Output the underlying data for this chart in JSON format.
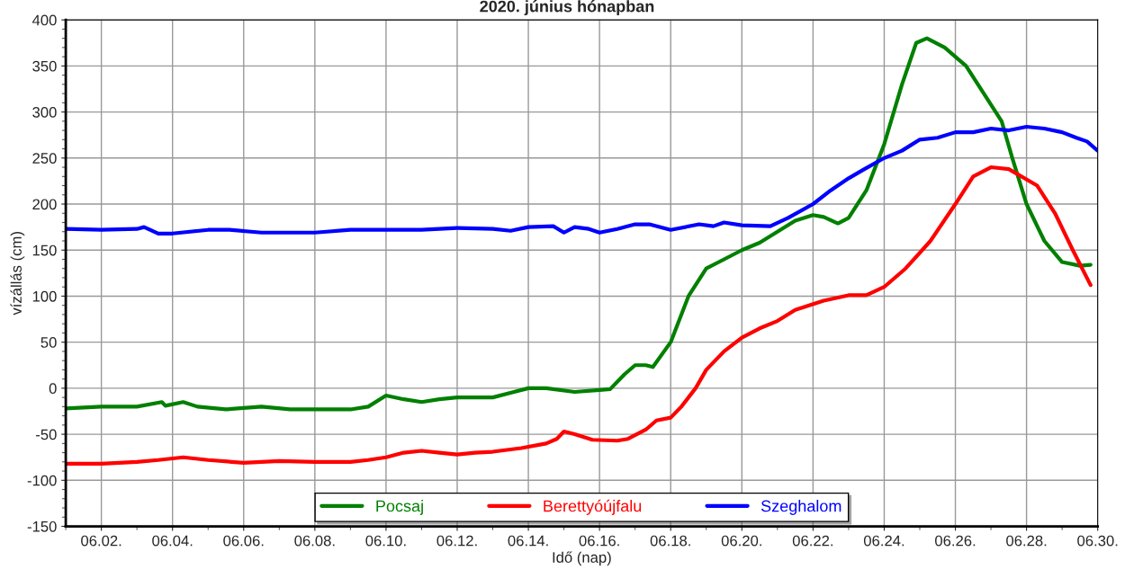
{
  "chart_data": {
    "type": "line",
    "title": "2020. június hónapban",
    "xlabel": "Idő (nap)",
    "ylabel": "vízállás (cm)",
    "xlim": [
      "2020-06-01",
      "2020-06-30"
    ],
    "xticks": [
      {
        "value": "2020-06-02",
        "label": "06.02."
      },
      {
        "value": "2020-06-04",
        "label": "06.04."
      },
      {
        "value": "2020-06-06",
        "label": "06.06."
      },
      {
        "value": "2020-06-08",
        "label": "06.08."
      },
      {
        "value": "2020-06-10",
        "label": "06.10."
      },
      {
        "value": "2020-06-12",
        "label": "06.12."
      },
      {
        "value": "2020-06-14",
        "label": "06.14."
      },
      {
        "value": "2020-06-16",
        "label": "06.16."
      },
      {
        "value": "2020-06-18",
        "label": "06.18."
      },
      {
        "value": "2020-06-20",
        "label": "06.20."
      },
      {
        "value": "2020-06-22",
        "label": "06.22."
      },
      {
        "value": "2020-06-24",
        "label": "06.24."
      },
      {
        "value": "2020-06-26",
        "label": "06.26."
      },
      {
        "value": "2020-06-28",
        "label": "06.28."
      },
      {
        "value": "2020-06-30",
        "label": "06.30."
      }
    ],
    "ylim": [
      -150,
      400
    ],
    "yticks": [
      -150,
      -100,
      -50,
      0,
      50,
      100,
      150,
      200,
      250,
      300,
      350,
      400
    ],
    "grid": true,
    "legend": "bottom",
    "line_style": "solid",
    "marker": "none",
    "series": [
      {
        "name": "Pocsaj",
        "color": "#008000",
        "x": [
          "2020-06-01T00:00",
          "2020-06-02T00:00",
          "2020-06-03T00:00",
          "2020-06-03T16:48",
          "2020-06-03T19:12",
          "2020-06-04T07:12",
          "2020-06-04T16:48",
          "2020-06-05T12:00",
          "2020-06-06T12:00",
          "2020-06-07T07:12",
          "2020-06-09T00:00",
          "2020-06-09T12:00",
          "2020-06-10T00:00",
          "2020-06-10T12:00",
          "2020-06-11T00:00",
          "2020-06-11T12:00",
          "2020-06-12T00:00",
          "2020-06-13T00:00",
          "2020-06-13T12:00",
          "2020-06-14T00:00",
          "2020-06-14T12:00",
          "2020-06-15T07:12",
          "2020-06-16T00:00",
          "2020-06-16T07:12",
          "2020-06-16T16:48",
          "2020-06-17T00:00",
          "2020-06-17T07:12",
          "2020-06-17T12:00",
          "2020-06-18T00:00",
          "2020-06-18T12:00",
          "2020-06-19T00:00",
          "2020-06-19T12:00",
          "2020-06-20T00:00",
          "2020-06-20T12:00",
          "2020-06-21T00:00",
          "2020-06-21T12:00",
          "2020-06-22T00:00",
          "2020-06-22T07:12",
          "2020-06-22T16:48",
          "2020-06-23T00:00",
          "2020-06-23T12:00",
          "2020-06-24T00:00",
          "2020-06-24T12:00",
          "2020-06-24T21:36",
          "2020-06-25T04:48",
          "2020-06-25T16:48",
          "2020-06-26T07:12",
          "2020-06-26T19:12",
          "2020-06-27T07:12",
          "2020-06-27T14:24",
          "2020-06-28T00:00",
          "2020-06-28T12:00",
          "2020-06-29T00:00",
          "2020-06-29T12:00",
          "2020-06-29T19:12"
        ],
        "values": [
          -22,
          -20,
          -20,
          -15,
          -19,
          -15,
          -20,
          -23,
          -20,
          -23,
          -23,
          -20,
          -8,
          -12,
          -15,
          -12,
          -10,
          -10,
          -5,
          0,
          0,
          -4,
          -2,
          -1,
          15,
          25,
          25,
          23,
          50,
          100,
          130,
          140,
          150,
          158,
          170,
          182,
          188,
          186,
          179,
          185,
          215,
          265,
          330,
          375,
          380,
          370,
          350,
          320,
          290,
          250,
          200,
          160,
          137,
          133,
          134
        ]
      },
      {
        "name": "Berettyóújfalu",
        "color": "#ff0000",
        "x": [
          "2020-06-01T00:00",
          "2020-06-02T00:00",
          "2020-06-03T00:00",
          "2020-06-03T14:24",
          "2020-06-04T07:12",
          "2020-06-05T00:00",
          "2020-06-06T00:00",
          "2020-06-07T00:00",
          "2020-06-08T00:00",
          "2020-06-09T00:00",
          "2020-06-09T12:00",
          "2020-06-10T00:00",
          "2020-06-10T12:00",
          "2020-06-11T00:00",
          "2020-06-11T12:00",
          "2020-06-12T00:00",
          "2020-06-12T12:00",
          "2020-06-13T00:00",
          "2020-06-13T19:12",
          "2020-06-14T12:00",
          "2020-06-14T19:12",
          "2020-06-15T00:00",
          "2020-06-15T07:12",
          "2020-06-15T19:12",
          "2020-06-16T12:00",
          "2020-06-16T19:12",
          "2020-06-17T07:12",
          "2020-06-17T14:24",
          "2020-06-18T00:00",
          "2020-06-18T07:12",
          "2020-06-18T16:48",
          "2020-06-19T00:00",
          "2020-06-19T12:00",
          "2020-06-20T00:00",
          "2020-06-20T12:00",
          "2020-06-21T00:00",
          "2020-06-21T12:00",
          "2020-06-22T07:12",
          "2020-06-23T00:00",
          "2020-06-23T12:00",
          "2020-06-24T00:00",
          "2020-06-24T14:24",
          "2020-06-25T07:12",
          "2020-06-26T00:00",
          "2020-06-26T12:00",
          "2020-06-27T00:00",
          "2020-06-27T12:00",
          "2020-06-28T07:12",
          "2020-06-28T19:12",
          "2020-06-29T07:12",
          "2020-06-29T19:12"
        ],
        "values": [
          -82,
          -82,
          -80,
          -78,
          -75,
          -78,
          -81,
          -79,
          -80,
          -80,
          -78,
          -75,
          -70,
          -68,
          -70,
          -72,
          -70,
          -69,
          -65,
          -60,
          -55,
          -47,
          -50,
          -56,
          -57,
          -55,
          -45,
          -35,
          -32,
          -20,
          0,
          20,
          40,
          55,
          65,
          73,
          85,
          95,
          101,
          101,
          110,
          130,
          160,
          200,
          230,
          240,
          238,
          220,
          190,
          150,
          112
        ]
      },
      {
        "name": "Szeghalom",
        "color": "#0000ff",
        "x": [
          "2020-06-01T00:00",
          "2020-06-02T00:00",
          "2020-06-03T00:00",
          "2020-06-03T04:48",
          "2020-06-03T14:24",
          "2020-06-04T00:00",
          "2020-06-05T00:00",
          "2020-06-05T14:24",
          "2020-06-06T12:00",
          "2020-06-08T00:00",
          "2020-06-09T00:00",
          "2020-06-10T00:00",
          "2020-06-11T00:00",
          "2020-06-12T00:00",
          "2020-06-13T00:00",
          "2020-06-13T12:00",
          "2020-06-14T00:00",
          "2020-06-14T16:48",
          "2020-06-15T00:00",
          "2020-06-15T07:12",
          "2020-06-15T16:48",
          "2020-06-16T00:00",
          "2020-06-16T12:00",
          "2020-06-17T00:00",
          "2020-06-17T09:36",
          "2020-06-18T00:00",
          "2020-06-18T19:12",
          "2020-06-19T04:48",
          "2020-06-19T12:00",
          "2020-06-20T00:00",
          "2020-06-20T19:12",
          "2020-06-21T07:12",
          "2020-06-22T00:00",
          "2020-06-22T12:00",
          "2020-06-23T00:00",
          "2020-06-23T09:36",
          "2020-06-24T00:00",
          "2020-06-24T12:00",
          "2020-06-25T00:00",
          "2020-06-25T12:00",
          "2020-06-26T00:00",
          "2020-06-26T12:00",
          "2020-06-27T00:00",
          "2020-06-27T12:00",
          "2020-06-28T00:00",
          "2020-06-28T12:00",
          "2020-06-29T00:00",
          "2020-06-29T09:36",
          "2020-06-29T16:48",
          "2020-06-30T00:00"
        ],
        "values": [
          173,
          172,
          173,
          175,
          168,
          168,
          172,
          172,
          169,
          169,
          172,
          172,
          172,
          174,
          173,
          171,
          175,
          176,
          169,
          175,
          173,
          169,
          173,
          178,
          178,
          172,
          178,
          176,
          180,
          177,
          176,
          185,
          200,
          215,
          228,
          237,
          250,
          258,
          270,
          272,
          278,
          278,
          282,
          280,
          284,
          282,
          278,
          272,
          268,
          258
        ]
      }
    ]
  }
}
